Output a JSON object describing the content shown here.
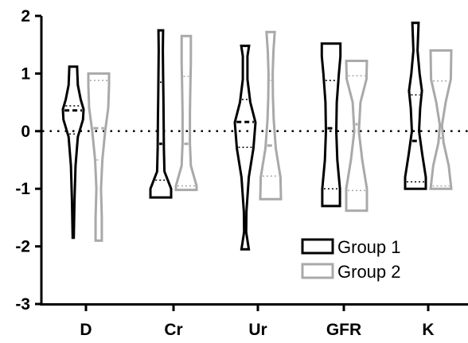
{
  "chart_data": {
    "type": "violin",
    "categories": [
      "D",
      "Cr",
      "Ur",
      "GFR",
      "K"
    ],
    "ylim": [
      -3,
      2
    ],
    "yticks": [
      "-3",
      "-2",
      "-1",
      "0",
      "1",
      "2"
    ],
    "reference_line": 0,
    "grid": false,
    "legend_position": "bottom-right",
    "series": [
      {
        "name": "Group 1",
        "color": "#000000",
        "violins": [
          {
            "min": -1.85,
            "max": 1.12,
            "median": 0.36,
            "q1": -0.05,
            "q3": 0.44,
            "profile": [
              [
                -1.85,
                0.05
              ],
              [
                -1.2,
                0.12
              ],
              [
                -0.6,
                0.22
              ],
              [
                -0.1,
                0.45
              ],
              [
                0.2,
                0.95
              ],
              [
                0.38,
                1.0
              ],
              [
                0.55,
                0.72
              ],
              [
                0.8,
                0.45
              ],
              [
                1.0,
                0.4
              ],
              [
                1.12,
                0.38
              ]
            ]
          },
          {
            "min": -1.15,
            "max": 1.75,
            "median": -0.22,
            "q1": -0.85,
            "q3": 0.85,
            "profile": [
              [
                -1.15,
                1.0
              ],
              [
                -1.0,
                1.0
              ],
              [
                -0.7,
                0.35
              ],
              [
                -0.3,
                0.3
              ],
              [
                0.2,
                0.28
              ],
              [
                0.6,
                0.25
              ],
              [
                1.0,
                0.22
              ],
              [
                1.4,
                0.2
              ],
              [
                1.75,
                0.22
              ]
            ]
          },
          {
            "min": -2.05,
            "max": 1.48,
            "median": 0.16,
            "q1": -0.28,
            "q3": 0.55,
            "profile": [
              [
                -2.05,
                0.35
              ],
              [
                -1.75,
                0.1
              ],
              [
                -1.4,
                0.12
              ],
              [
                -0.8,
                0.35
              ],
              [
                -0.3,
                0.8
              ],
              [
                0.15,
                1.0
              ],
              [
                0.5,
                0.5
              ],
              [
                0.9,
                0.22
              ],
              [
                1.3,
                0.22
              ],
              [
                1.48,
                0.38
              ]
            ]
          },
          {
            "min": -1.3,
            "max": 1.52,
            "median": 0.05,
            "q1": -1.0,
            "q3": 0.88,
            "profile": [
              [
                -1.3,
                0.85
              ],
              [
                -1.0,
                0.85
              ],
              [
                -0.5,
                0.6
              ],
              [
                0.0,
                0.5
              ],
              [
                0.5,
                0.55
              ],
              [
                1.0,
                0.75
              ],
              [
                1.3,
                0.9
              ],
              [
                1.52,
                0.9
              ]
            ]
          },
          {
            "min": -1.0,
            "max": 1.88,
            "median": -0.17,
            "q1": -0.88,
            "q3": 0.63,
            "profile": [
              [
                -1.0,
                1.0
              ],
              [
                -0.8,
                1.0
              ],
              [
                -0.4,
                0.65
              ],
              [
                0.0,
                0.35
              ],
              [
                0.4,
                0.45
              ],
              [
                0.7,
                0.62
              ],
              [
                1.0,
                0.4
              ],
              [
                1.4,
                0.2
              ],
              [
                1.88,
                0.3
              ]
            ]
          }
        ]
      },
      {
        "name": "Group 2",
        "color": "#a9a9a9",
        "violins": [
          {
            "min": -1.9,
            "max": 1.0,
            "median": 0.05,
            "q1": -0.5,
            "q3": 0.88,
            "profile": [
              [
                -1.9,
                0.3
              ],
              [
                -1.5,
                0.3
              ],
              [
                -1.0,
                0.22
              ],
              [
                -0.5,
                0.35
              ],
              [
                0.0,
                0.62
              ],
              [
                0.4,
                0.92
              ],
              [
                0.8,
                1.0
              ],
              [
                1.0,
                1.0
              ]
            ]
          },
          {
            "min": -1.02,
            "max": 1.65,
            "median": -0.22,
            "q1": -0.95,
            "q3": 0.95,
            "profile": [
              [
                -1.02,
                1.0
              ],
              [
                -0.95,
                1.0
              ],
              [
                -0.6,
                0.45
              ],
              [
                -0.2,
                0.35
              ],
              [
                0.3,
                0.35
              ],
              [
                0.8,
                0.4
              ],
              [
                1.2,
                0.45
              ],
              [
                1.65,
                0.45
              ]
            ]
          },
          {
            "min": -1.18,
            "max": 1.72,
            "median": -0.25,
            "q1": -0.78,
            "q3": 0.88,
            "profile": [
              [
                -1.18,
                1.0
              ],
              [
                -0.8,
                0.95
              ],
              [
                -0.3,
                0.5
              ],
              [
                0.2,
                0.3
              ],
              [
                0.6,
                0.22
              ],
              [
                1.0,
                0.2
              ],
              [
                1.4,
                0.28
              ],
              [
                1.72,
                0.4
              ]
            ]
          },
          {
            "min": -1.38,
            "max": 1.22,
            "median": 0.12,
            "q1": -1.03,
            "q3": 0.96,
            "profile": [
              [
                -1.38,
                1.0
              ],
              [
                -1.0,
                1.0
              ],
              [
                -0.5,
                0.55
              ],
              [
                0.0,
                0.22
              ],
              [
                0.5,
                0.38
              ],
              [
                0.9,
                0.95
              ],
              [
                1.22,
                1.0
              ]
            ]
          },
          {
            "min": -1.0,
            "max": 1.4,
            "median": -0.12,
            "q1": -0.95,
            "q3": 0.87,
            "profile": [
              [
                -1.0,
                1.0
              ],
              [
                -0.6,
                0.75
              ],
              [
                -0.2,
                0.25
              ],
              [
                0.1,
                0.1
              ],
              [
                0.5,
                0.45
              ],
              [
                0.9,
                0.95
              ],
              [
                1.4,
                1.0
              ]
            ]
          }
        ]
      }
    ]
  }
}
